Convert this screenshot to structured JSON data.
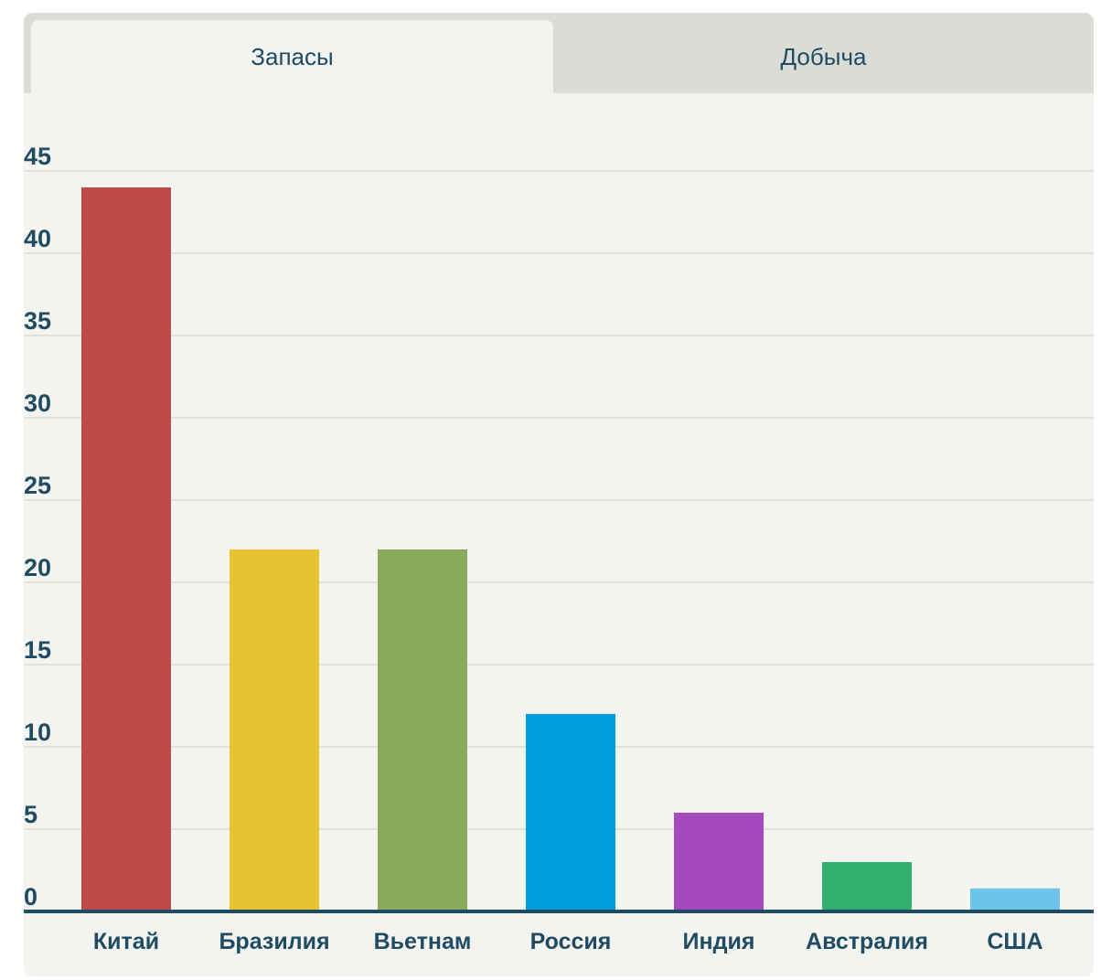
{
  "tabs": [
    {
      "label": "Запасы",
      "active": true
    },
    {
      "label": "Добыча",
      "active": false
    }
  ],
  "colors": {
    "background": "#f3f3ef",
    "tab_inactive": "#dcdcd7",
    "text": "#1f4c63",
    "gridline": "#dfe1dd",
    "axis": "#1f4c63"
  },
  "chart_data": {
    "type": "bar",
    "title": "",
    "xlabel": "",
    "ylabel": "",
    "ylim": [
      0,
      45
    ],
    "yticks": [
      0,
      5,
      10,
      15,
      20,
      25,
      30,
      35,
      40,
      45
    ],
    "categories": [
      "Китай",
      "Бразилия",
      "Вьетнам",
      "Россия",
      "Индия",
      "Австралия",
      "США"
    ],
    "values": [
      44,
      22,
      22,
      12,
      6,
      3,
      1.4
    ],
    "bar_colors": [
      "#bd4949",
      "#e5c333",
      "#89a95c",
      "#009ddd",
      "#a648be",
      "#31b06d",
      "#6dc3e8"
    ],
    "grid": true,
    "legend": "none"
  }
}
